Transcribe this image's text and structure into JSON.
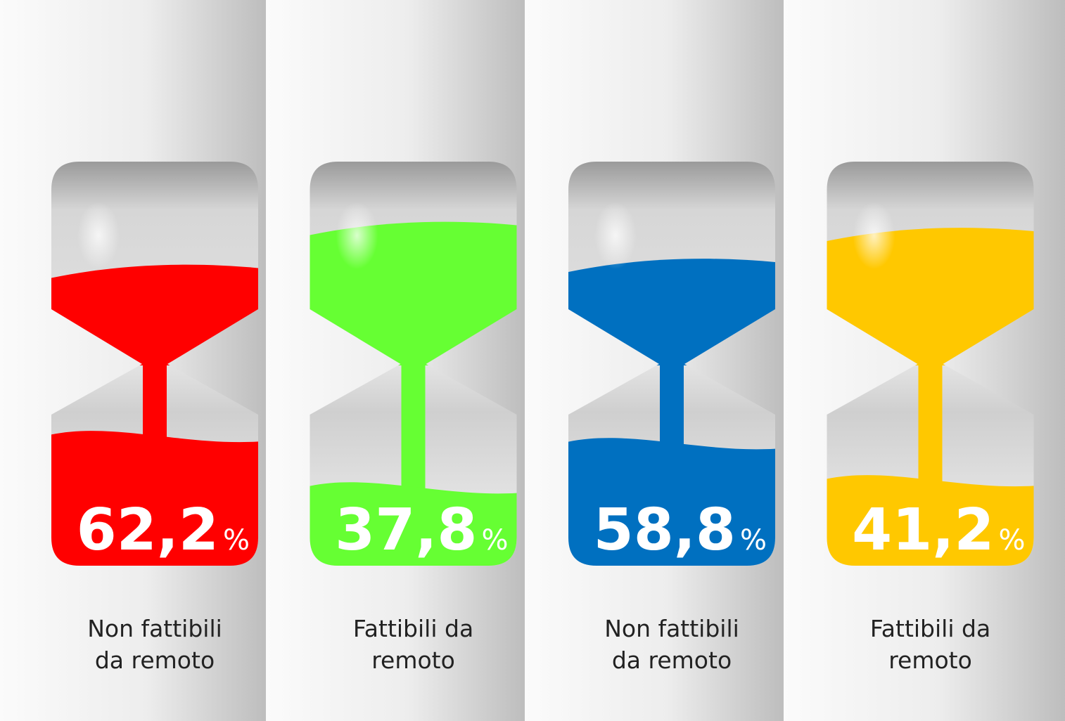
{
  "chart_data": {
    "type": "hourglass",
    "categories": [
      "Non fattibili da remoto",
      "Fattibili da remoto",
      "Non fattibili da remoto",
      "Fattibili da remoto"
    ],
    "values": [
      62.2,
      37.8,
      58.8,
      41.2
    ],
    "value_labels": [
      "62,2%",
      "37,8%",
      "58,8%",
      "41,2%"
    ],
    "colors": [
      "#ff0000",
      "#66ff33",
      "#0070c0",
      "#ffc800"
    ]
  }
}
